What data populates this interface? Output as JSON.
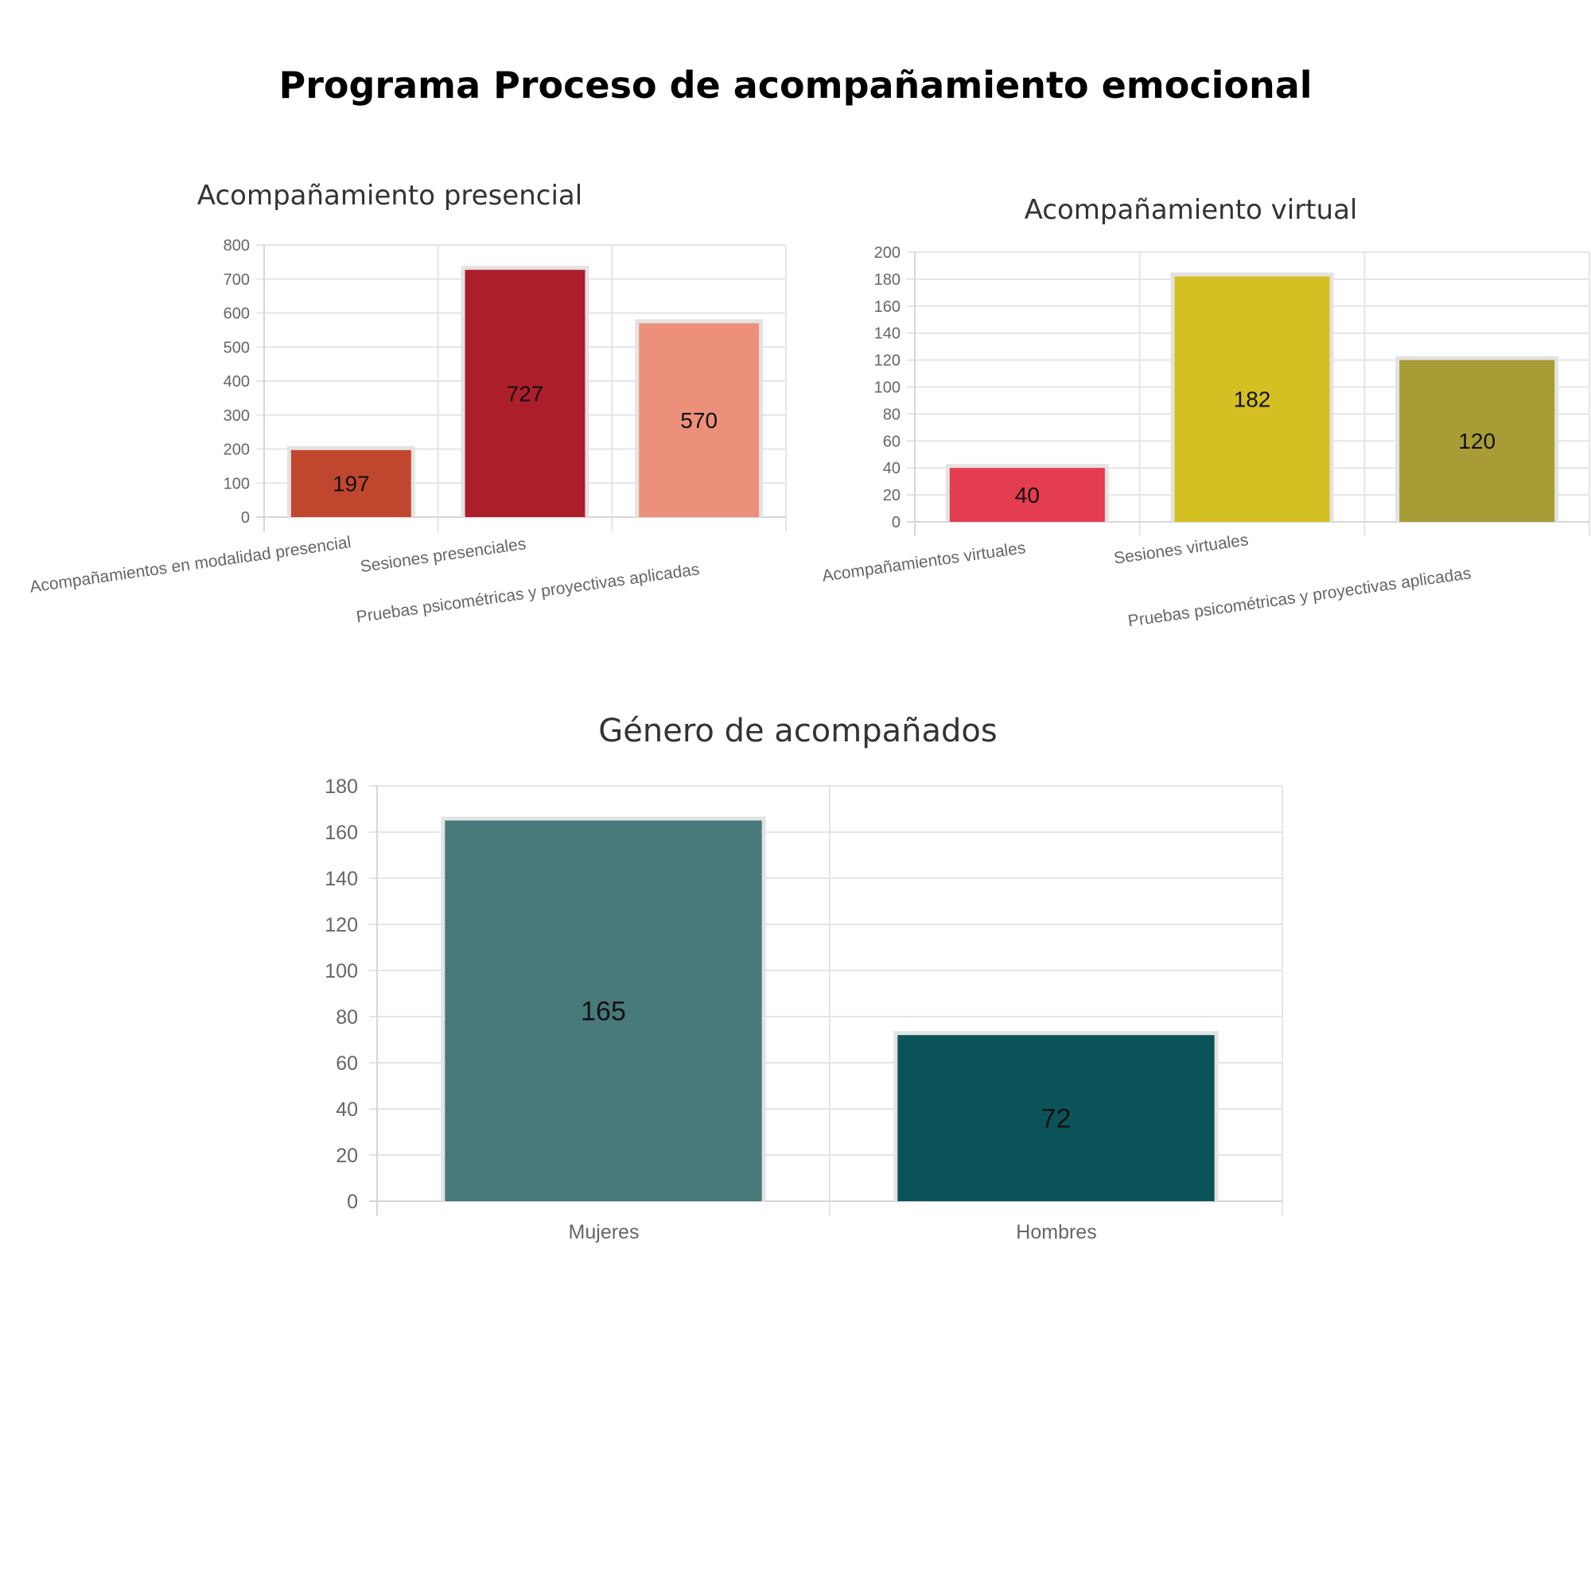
{
  "page": {
    "title": "Programa Proceso de acompañamiento emocional"
  },
  "chart_data": [
    {
      "id": "presencial",
      "type": "bar",
      "title": "Acompañamiento presencial",
      "categories": [
        "Acompañamientos en modalidad presencial",
        "Sesiones presenciales",
        "Pruebas psicométricas y proyectivas aplicadas"
      ],
      "values": [
        197,
        727,
        570
      ],
      "colors": [
        "#c0472e",
        "#ad1e2b",
        "#ec907b"
      ],
      "ylim": [
        0,
        800
      ],
      "yticks": [
        0,
        100,
        200,
        300,
        400,
        500,
        600,
        700,
        800
      ],
      "grid": true,
      "legend": "none"
    },
    {
      "id": "virtual",
      "type": "bar",
      "title": "Acompañamiento virtual",
      "categories": [
        "Acompañamientos virtuales",
        "Sesiones virtuales",
        "Pruebas psicométricas y proyectivas aplicadas"
      ],
      "values": [
        40,
        182,
        120
      ],
      "colors": [
        "#e33d4f",
        "#d4c022",
        "#a89c36"
      ],
      "ylim": [
        0,
        200
      ],
      "yticks": [
        0,
        20,
        40,
        60,
        80,
        100,
        120,
        140,
        160,
        180,
        200
      ],
      "grid": true,
      "legend": "none"
    },
    {
      "id": "genero",
      "type": "bar",
      "title": "Género de acompañados",
      "categories": [
        "Mujeres",
        "Hombres"
      ],
      "values": [
        165,
        72
      ],
      "colors": [
        "#48797b",
        "#0a5359"
      ],
      "ylim": [
        0,
        180
      ],
      "yticks": [
        0,
        20,
        40,
        60,
        80,
        100,
        120,
        140,
        160,
        180
      ],
      "grid": true,
      "legend": "none"
    }
  ]
}
